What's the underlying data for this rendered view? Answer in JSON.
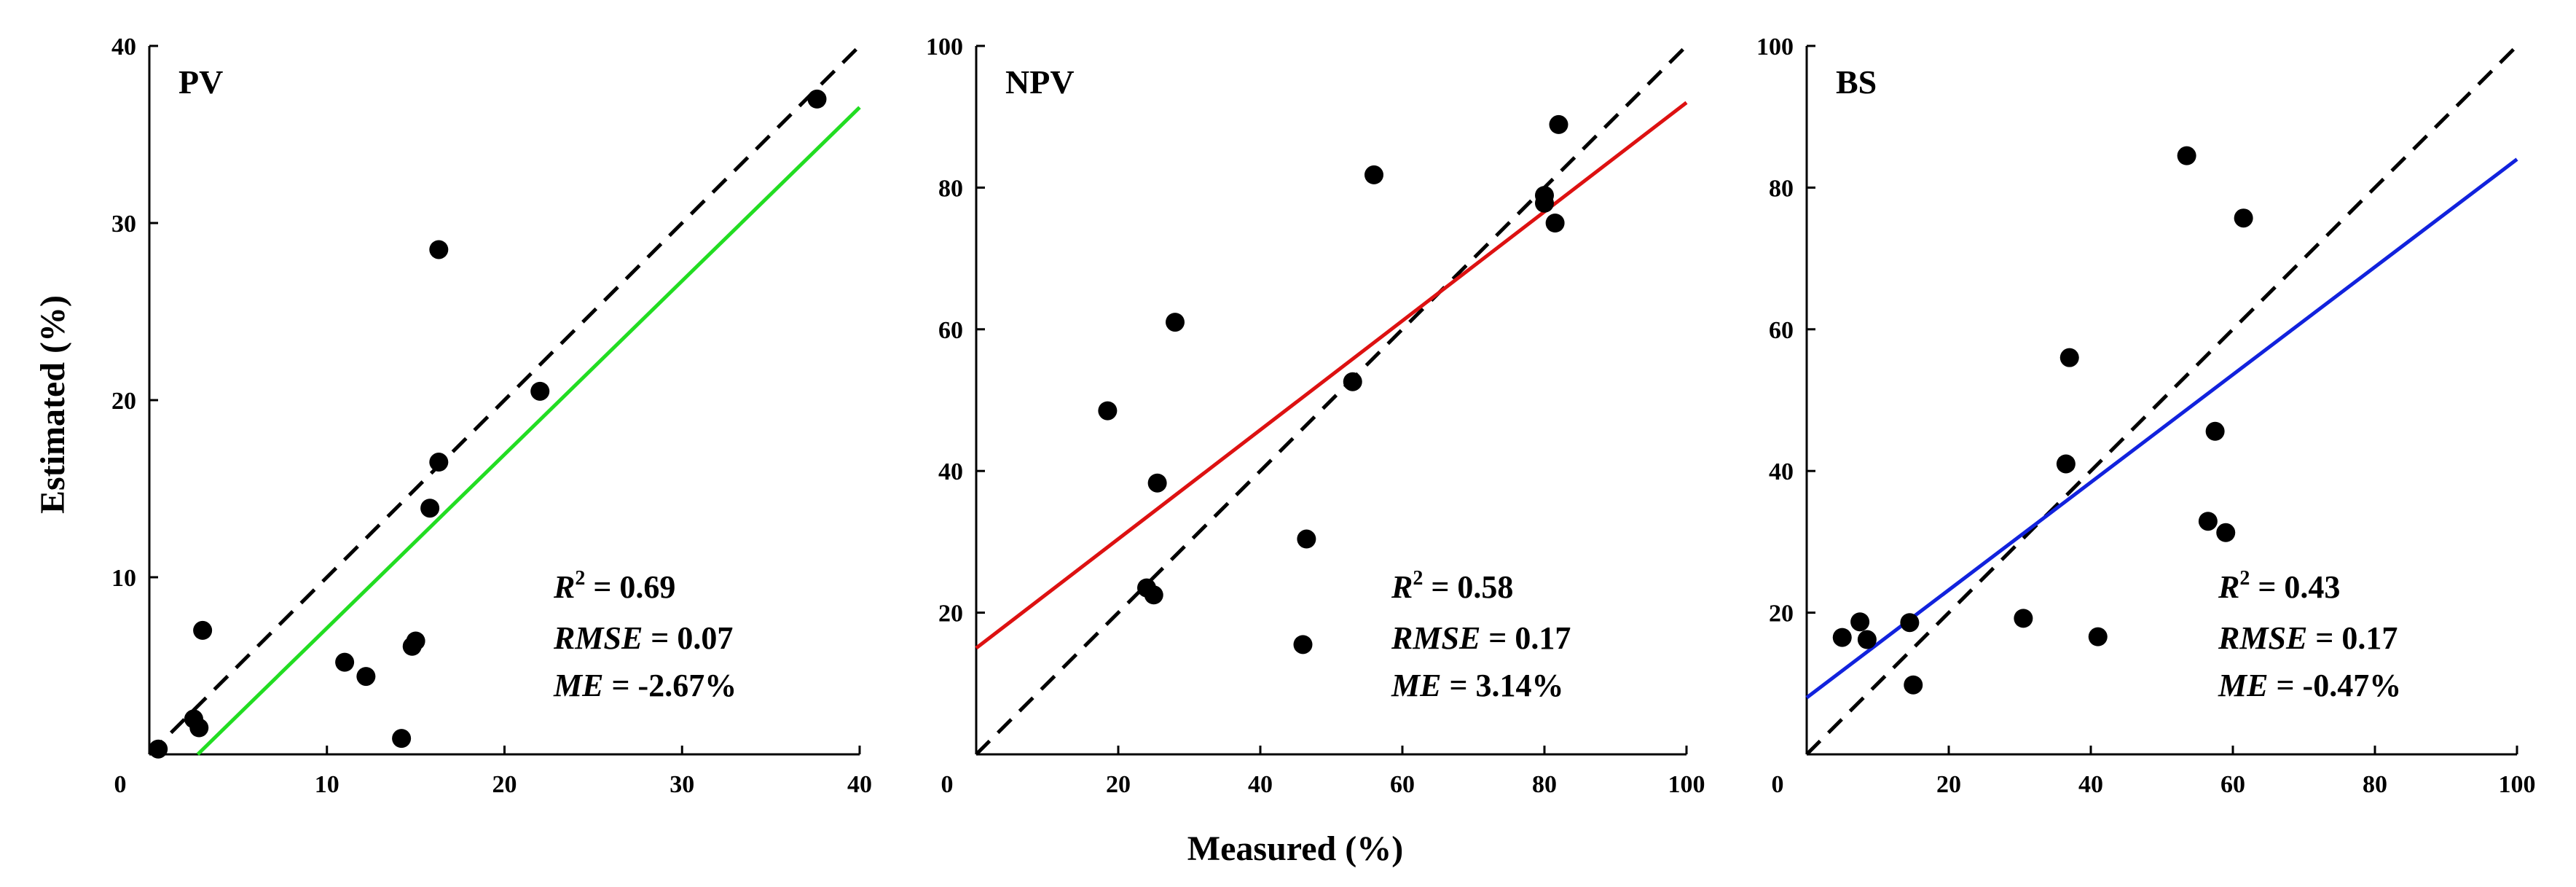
{
  "shared_labels": {
    "xlabel": "Measured (%)",
    "ylabel": "Estimated (%)"
  },
  "chart_data": [
    {
      "type": "scatter",
      "panel_label": "PV",
      "xlim": [
        0,
        40
      ],
      "ylim": [
        0,
        40
      ],
      "x_ticks": [
        "0",
        "10",
        "20",
        "30",
        "40"
      ],
      "y_ticks": [
        "10",
        "20",
        "30",
        "40"
      ],
      "fit_color": "#22dd22",
      "fit_line": {
        "intercept": -2.67,
        "slope": 0.98
      },
      "one_to_one_line": true,
      "points": [
        {
          "x": 0.5,
          "y": 0.3
        },
        {
          "x": 2.5,
          "y": 2.0
        },
        {
          "x": 2.8,
          "y": 1.5
        },
        {
          "x": 3.0,
          "y": 7.0
        },
        {
          "x": 11.0,
          "y": 5.2
        },
        {
          "x": 12.2,
          "y": 4.4
        },
        {
          "x": 14.2,
          "y": 0.9
        },
        {
          "x": 14.8,
          "y": 6.1
        },
        {
          "x": 15.0,
          "y": 6.4
        },
        {
          "x": 15.8,
          "y": 13.9
        },
        {
          "x": 16.3,
          "y": 16.5
        },
        {
          "x": 16.3,
          "y": 28.5
        },
        {
          "x": 22.0,
          "y": 20.5
        },
        {
          "x": 37.6,
          "y": 37.0
        }
      ],
      "stats": {
        "r2_label": "R",
        "r2_sup": "2",
        "r2_value": " = 0.69",
        "rmse_label": "RMSE",
        "rmse_value": " = 0.07",
        "me_label": "ME",
        "me_value": " = -2.67%"
      }
    },
    {
      "type": "scatter",
      "panel_label": "NPV",
      "xlim": [
        0,
        100
      ],
      "ylim": [
        0,
        100
      ],
      "x_ticks": [
        "0",
        "20",
        "40",
        "60",
        "80",
        "100"
      ],
      "y_ticks": [
        "20",
        "40",
        "60",
        "80",
        "100"
      ],
      "fit_color": "#dd1111",
      "fit_line": {
        "intercept": 15.0,
        "slope": 0.77
      },
      "one_to_one_line": true,
      "points": [
        {
          "x": 18.5,
          "y": 48.5
        },
        {
          "x": 24.0,
          "y": 23.5
        },
        {
          "x": 25.0,
          "y": 22.5
        },
        {
          "x": 25.5,
          "y": 38.3
        },
        {
          "x": 28.0,
          "y": 61.0
        },
        {
          "x": 46.0,
          "y": 15.5
        },
        {
          "x": 46.5,
          "y": 30.4
        },
        {
          "x": 53.0,
          "y": 52.6
        },
        {
          "x": 56.0,
          "y": 81.8
        },
        {
          "x": 80.0,
          "y": 77.8
        },
        {
          "x": 80.0,
          "y": 78.9
        },
        {
          "x": 81.5,
          "y": 75.0
        },
        {
          "x": 82.0,
          "y": 88.9
        }
      ],
      "stats": {
        "r2_label": "R",
        "r2_sup": "2",
        "r2_value": " = 0.58",
        "rmse_label": "RMSE",
        "rmse_value": " = 0.17",
        "me_label": "ME",
        "me_value": " = 3.14%"
      }
    },
    {
      "type": "scatter",
      "panel_label": "BS",
      "xlim": [
        0,
        100
      ],
      "ylim": [
        0,
        100
      ],
      "x_ticks": [
        "0",
        "20",
        "40",
        "60",
        "80",
        "100"
      ],
      "y_ticks": [
        "20",
        "40",
        "60",
        "80",
        "100"
      ],
      "fit_color": "#1122dd",
      "fit_line": {
        "intercept": 8.0,
        "slope": 0.76
      },
      "one_to_one_line": true,
      "points": [
        {
          "x": 5.0,
          "y": 16.5
        },
        {
          "x": 7.5,
          "y": 18.7
        },
        {
          "x": 8.5,
          "y": 16.2
        },
        {
          "x": 14.5,
          "y": 18.6
        },
        {
          "x": 15.0,
          "y": 9.8
        },
        {
          "x": 30.5,
          "y": 19.2
        },
        {
          "x": 36.5,
          "y": 41.0
        },
        {
          "x": 37.0,
          "y": 56.0
        },
        {
          "x": 41.0,
          "y": 16.6
        },
        {
          "x": 53.5,
          "y": 84.5
        },
        {
          "x": 56.5,
          "y": 32.9
        },
        {
          "x": 57.5,
          "y": 45.6
        },
        {
          "x": 59.0,
          "y": 31.3
        },
        {
          "x": 61.5,
          "y": 75.7
        }
      ],
      "stats": {
        "r2_label": "R",
        "r2_sup": "2",
        "r2_value": " = 0.43",
        "rmse_label": "RMSE",
        "rmse_value": " = 0.17",
        "me_label": "ME",
        "me_value": " = -0.47%"
      }
    }
  ]
}
